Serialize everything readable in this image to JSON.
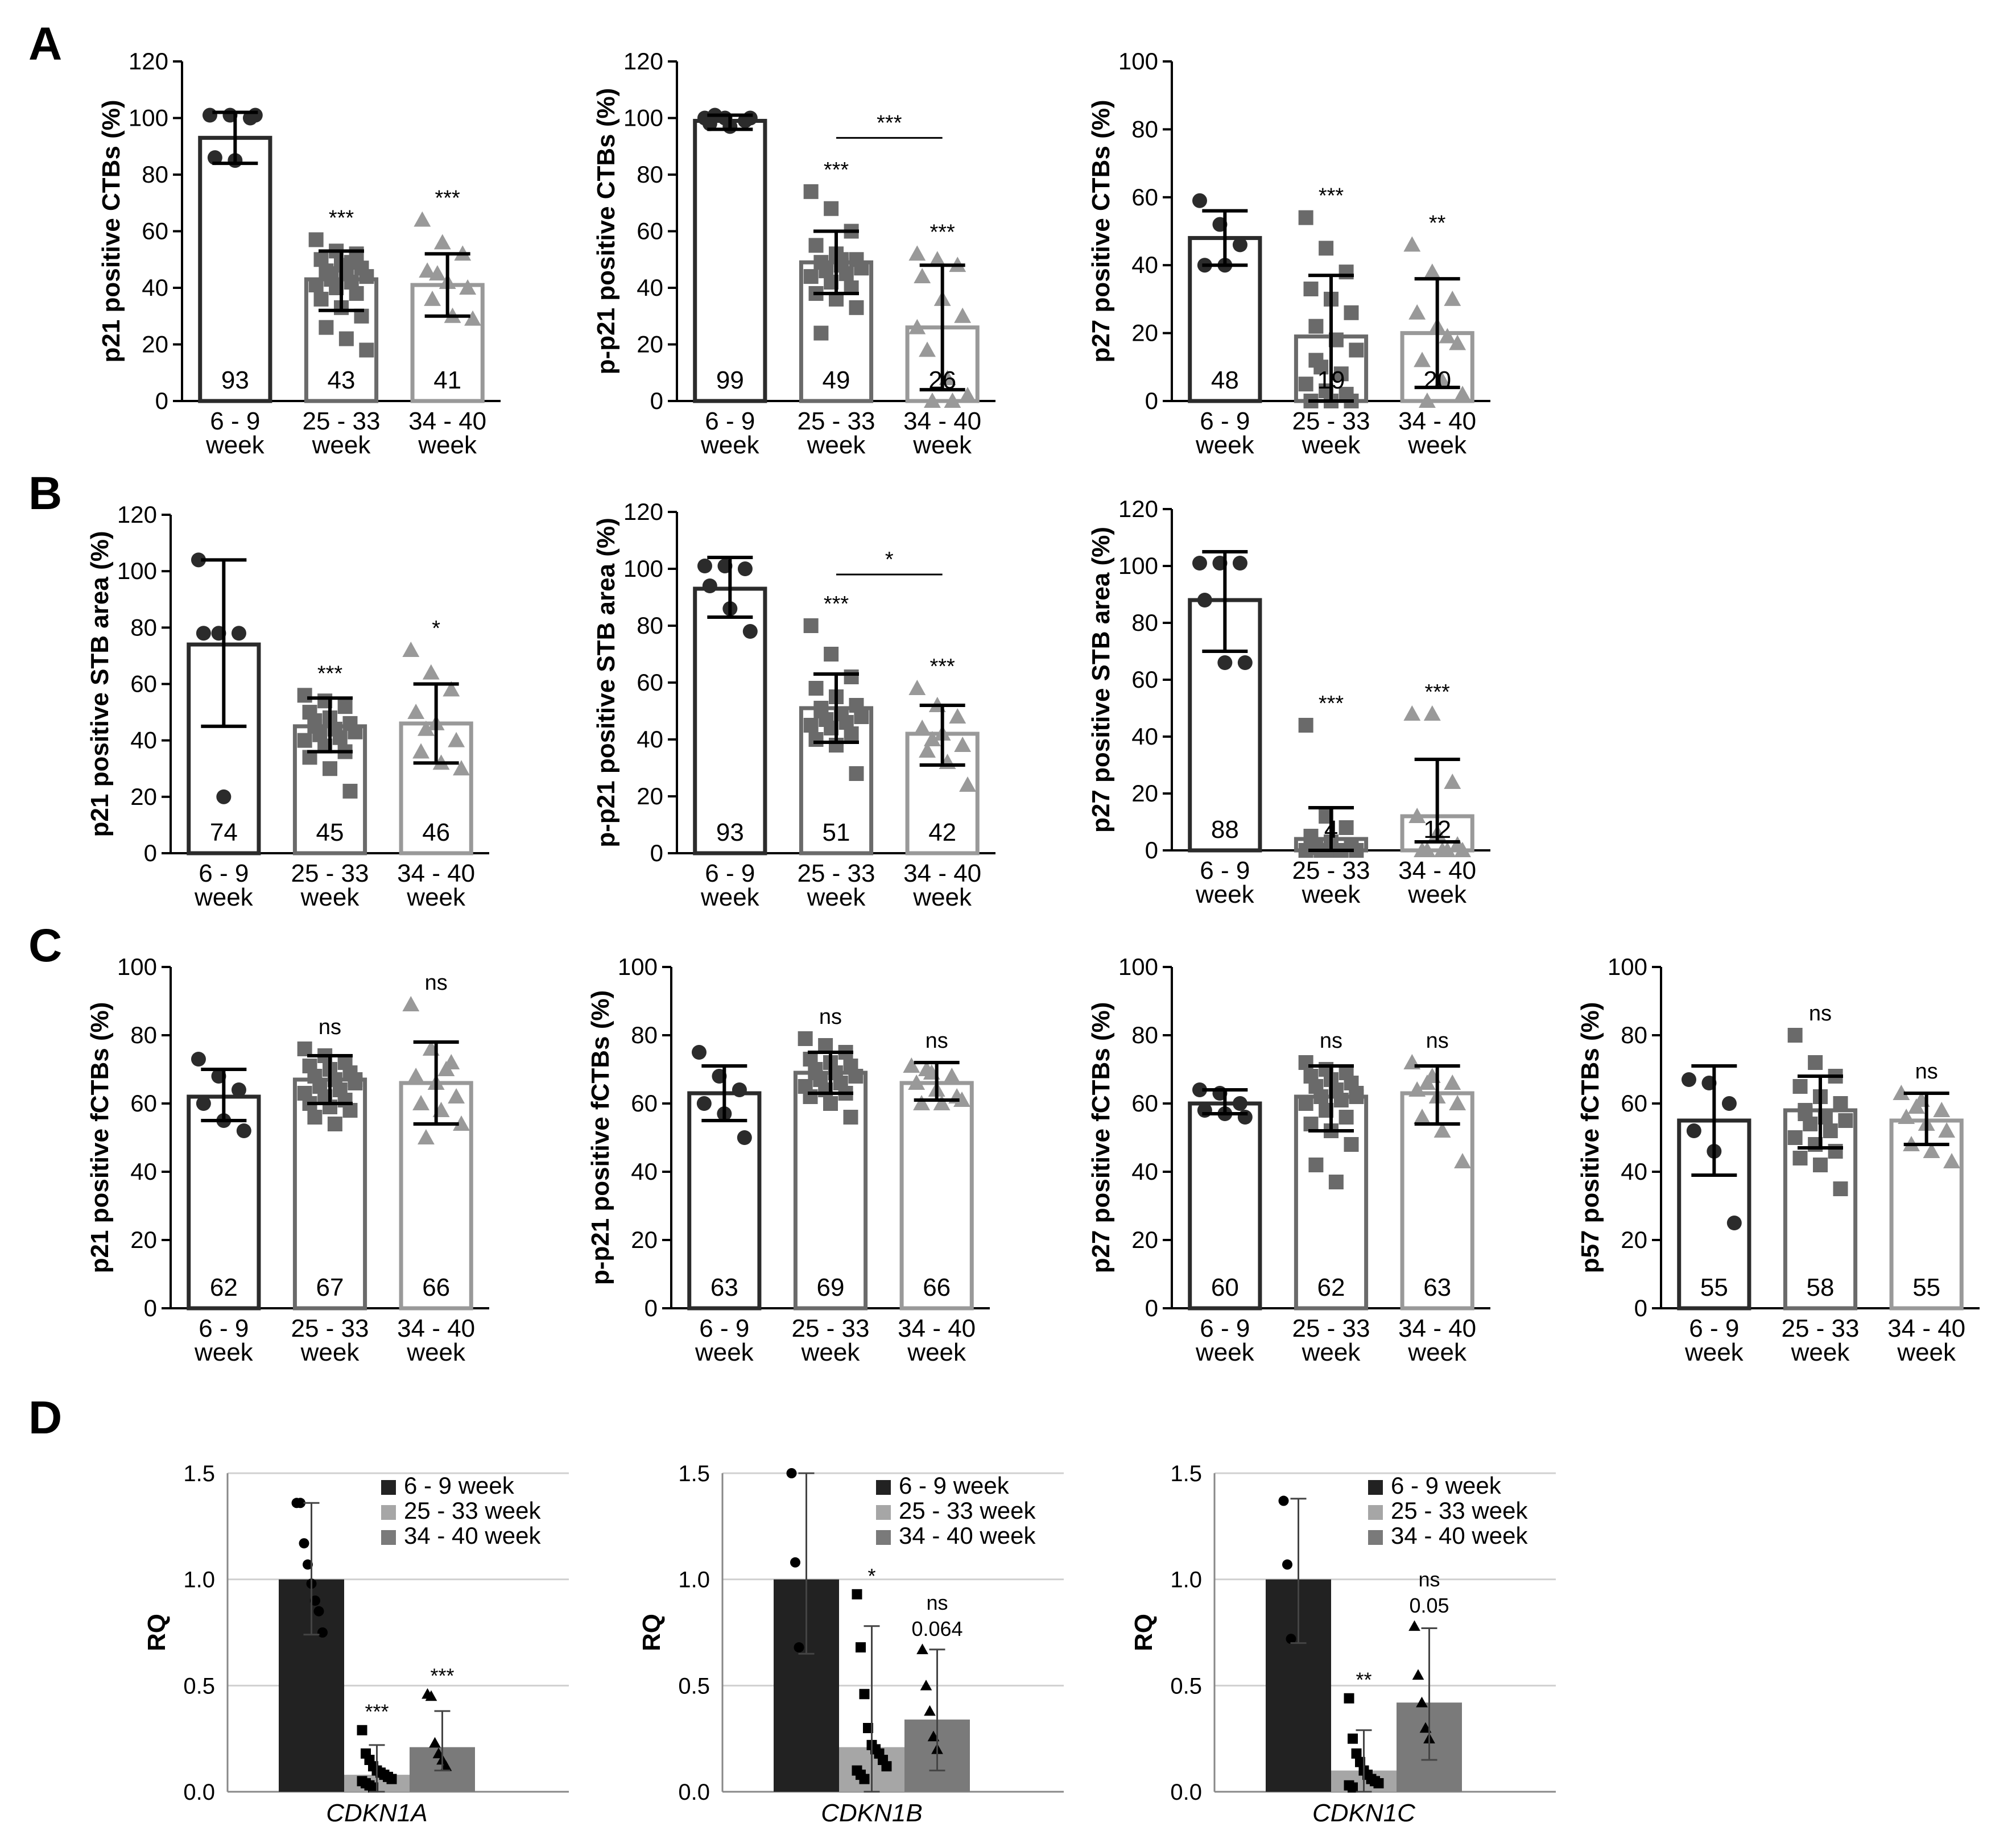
{
  "panel_letters": [
    "A",
    "B",
    "C",
    "D"
  ],
  "colors": {
    "dark": "#2b2b2b",
    "mid": "#6a6a6a",
    "light": "#999999",
    "rq_dark": "#222222",
    "rq_light": "#a6a6a6",
    "rq_mid": "#7a7a7a",
    "grid": "#d0d0d0"
  },
  "chart_data": [
    {
      "id": "A1",
      "panel": "A",
      "type": "bar",
      "ylabel": "p21 positive CTBs (%)",
      "ylim": [
        0,
        120
      ],
      "yticks": [
        0,
        20,
        40,
        60,
        80,
        100,
        120
      ],
      "categories": [
        [
          "6 - 9",
          "week"
        ],
        [
          "25 - 33",
          "week"
        ],
        [
          "34 - 40",
          "week"
        ]
      ],
      "values": [
        93,
        43,
        41
      ],
      "value_labels": [
        "93",
        "43",
        "41"
      ],
      "errors": [
        [
          84,
          102
        ],
        [
          32,
          53
        ],
        [
          30,
          52
        ]
      ],
      "significance": [
        "",
        "***",
        "***"
      ],
      "points": [
        [
          101,
          101,
          100,
          86,
          85,
          101
        ],
        [
          57,
          53,
          52,
          50,
          48,
          47,
          46,
          45,
          44,
          43,
          42,
          41,
          40,
          38,
          36,
          33,
          30,
          26,
          22,
          18,
          45,
          49
        ],
        [
          64,
          56,
          52,
          46,
          42,
          40,
          36,
          30,
          29,
          45
        ]
      ]
    },
    {
      "id": "A2",
      "panel": "A",
      "type": "bar",
      "ylabel": "p-p21 positive CTBs (%)",
      "ylim": [
        0,
        120
      ],
      "yticks": [
        0,
        20,
        40,
        60,
        80,
        100,
        120
      ],
      "categories": [
        [
          "6 - 9",
          "week"
        ],
        [
          "25 - 33",
          "week"
        ],
        [
          "34 - 40",
          "week"
        ]
      ],
      "values": [
        99,
        49,
        26
      ],
      "value_labels": [
        "99",
        "49",
        "26"
      ],
      "errors": [
        [
          96,
          101
        ],
        [
          38,
          60
        ],
        [
          4,
          48
        ]
      ],
      "significance": [
        "",
        "***",
        "***"
      ],
      "bracket": {
        "from": 1,
        "to": 2,
        "label": "***",
        "y": 93
      },
      "points": [
        [
          100,
          100,
          99,
          98,
          97,
          100,
          101
        ],
        [
          74,
          68,
          60,
          55,
          52,
          50,
          49,
          48,
          47,
          46,
          45,
          44,
          42,
          40,
          38,
          36,
          33,
          24,
          50,
          47
        ],
        [
          52,
          50,
          48,
          44,
          36,
          30,
          18,
          8,
          2,
          0,
          0,
          26
        ]
      ]
    },
    {
      "id": "A3",
      "panel": "A",
      "type": "bar",
      "ylabel": "p27 positive CTBs (%)",
      "ylim": [
        0,
        100
      ],
      "yticks": [
        0,
        20,
        40,
        60,
        80,
        100
      ],
      "categories": [
        [
          "6 - 9",
          "week"
        ],
        [
          "25 - 33",
          "week"
        ],
        [
          "34 - 40",
          "week"
        ]
      ],
      "values": [
        48,
        19,
        20
      ],
      "value_labels": [
        "48",
        "19",
        "20"
      ],
      "errors": [
        [
          40,
          56
        ],
        [
          0,
          37
        ],
        [
          4,
          36
        ]
      ],
      "significance": [
        "",
        "***",
        "**"
      ],
      "points": [
        [
          59,
          52,
          46,
          40,
          40
        ],
        [
          54,
          45,
          38,
          33,
          30,
          26,
          22,
          18,
          15,
          10,
          8,
          5,
          3,
          2,
          0,
          0,
          0,
          12
        ],
        [
          46,
          38,
          30,
          26,
          22,
          17,
          12,
          6,
          2,
          0,
          19
        ]
      ]
    },
    {
      "id": "B1",
      "panel": "B",
      "type": "bar",
      "ylabel": "p21 positive STB area (%)",
      "ylim": [
        0,
        120
      ],
      "yticks": [
        0,
        20,
        40,
        60,
        80,
        100,
        120
      ],
      "categories": [
        [
          "6 - 9",
          "week"
        ],
        [
          "25 - 33",
          "week"
        ],
        [
          "34 - 40",
          "week"
        ]
      ],
      "values": [
        74,
        45,
        46
      ],
      "value_labels": [
        "74",
        "45",
        "46"
      ],
      "errors": [
        [
          45,
          104
        ],
        [
          36,
          55
        ],
        [
          32,
          60
        ]
      ],
      "significance": [
        "",
        "***",
        "*"
      ],
      "points": [
        [
          104,
          78,
          78,
          78,
          20
        ],
        [
          56,
          54,
          52,
          50,
          48,
          46,
          45,
          44,
          43,
          42,
          41,
          40,
          38,
          36,
          34,
          30,
          22,
          47
        ],
        [
          72,
          64,
          58,
          50,
          46,
          40,
          36,
          32,
          30,
          44
        ]
      ]
    },
    {
      "id": "B2",
      "panel": "B",
      "type": "bar",
      "ylabel": "p-p21 positive STB area (%)",
      "ylim": [
        0,
        120
      ],
      "yticks": [
        0,
        20,
        40,
        60,
        80,
        100,
        120
      ],
      "categories": [
        [
          "6 - 9",
          "week"
        ],
        [
          "25 - 33",
          "week"
        ],
        [
          "34 - 40",
          "week"
        ]
      ],
      "values": [
        93,
        51,
        42
      ],
      "value_labels": [
        "93",
        "51",
        "42"
      ],
      "errors": [
        [
          83,
          104
        ],
        [
          39,
          63
        ],
        [
          31,
          52
        ]
      ],
      "significance": [
        "",
        "***",
        "***"
      ],
      "bracket": {
        "from": 1,
        "to": 2,
        "label": "*",
        "y": 98
      },
      "points": [
        [
          101,
          101,
          100,
          94,
          86,
          78
        ],
        [
          80,
          70,
          62,
          58,
          55,
          52,
          50,
          49,
          48,
          47,
          46,
          45,
          44,
          42,
          40,
          38,
          28,
          51
        ],
        [
          58,
          52,
          48,
          44,
          42,
          38,
          36,
          32,
          24,
          40
        ]
      ]
    },
    {
      "id": "B3",
      "panel": "B",
      "type": "bar",
      "ylabel": "p27 positive STB area (%)",
      "ylim": [
        0,
        120
      ],
      "yticks": [
        0,
        20,
        40,
        60,
        80,
        100,
        120
      ],
      "categories": [
        [
          "6 - 9",
          "week"
        ],
        [
          "25 - 33",
          "week"
        ],
        [
          "34 - 40",
          "week"
        ]
      ],
      "values": [
        88,
        4,
        12
      ],
      "value_labels": [
        "88",
        "4",
        "12"
      ],
      "errors": [
        [
          70,
          105
        ],
        [
          0,
          15
        ],
        [
          3,
          32
        ]
      ],
      "significance": [
        "",
        "***",
        "***"
      ],
      "points": [
        [
          101,
          101,
          101,
          88,
          66,
          66
        ],
        [
          44,
          12,
          8,
          5,
          3,
          2,
          1,
          0,
          0,
          0,
          0,
          0,
          0
        ],
        [
          48,
          48,
          24,
          12,
          6,
          2,
          0,
          0,
          0,
          0,
          0
        ]
      ]
    },
    {
      "id": "C1",
      "panel": "C",
      "type": "bar",
      "ylabel": "p21 positive fCTBs (%)",
      "ylim": [
        0,
        100
      ],
      "yticks": [
        0,
        20,
        40,
        60,
        80,
        100
      ],
      "categories": [
        [
          "6 - 9",
          "week"
        ],
        [
          "25 - 33",
          "week"
        ],
        [
          "34 - 40",
          "week"
        ]
      ],
      "values": [
        62,
        67,
        66
      ],
      "value_labels": [
        "62",
        "67",
        "66"
      ],
      "errors": [
        [
          55,
          70
        ],
        [
          60,
          74
        ],
        [
          54,
          78
        ]
      ],
      "significance": [
        "",
        "ns",
        "ns"
      ],
      "points": [
        [
          73,
          68,
          64,
          60,
          55,
          52
        ],
        [
          76,
          74,
          72,
          71,
          70,
          69,
          68,
          67,
          66,
          65,
          64,
          63,
          62,
          61,
          60,
          59,
          58,
          56,
          54,
          67
        ],
        [
          89,
          76,
          72,
          68,
          66,
          62,
          60,
          58,
          54,
          50,
          70
        ]
      ]
    },
    {
      "id": "C2",
      "panel": "C",
      "type": "bar",
      "ylabel": "p-p21 positive fCTBs (%)",
      "ylim": [
        0,
        100
      ],
      "yticks": [
        0,
        20,
        40,
        60,
        80,
        100
      ],
      "categories": [
        [
          "6 - 9",
          "week"
        ],
        [
          "25 - 33",
          "week"
        ],
        [
          "34 - 40",
          "week"
        ]
      ],
      "values": [
        63,
        69,
        66
      ],
      "value_labels": [
        "63",
        "69",
        "66"
      ],
      "errors": [
        [
          55,
          71
        ],
        [
          63,
          75
        ],
        [
          61,
          72
        ]
      ],
      "significance": [
        "",
        "ns",
        "ns"
      ],
      "points": [
        [
          75,
          68,
          64,
          60,
          57,
          50
        ],
        [
          79,
          77,
          75,
          73,
          72,
          71,
          70,
          69,
          68,
          67,
          66,
          65,
          64,
          63,
          62,
          60,
          56,
          69
        ],
        [
          71,
          69,
          68,
          66,
          64,
          62,
          60,
          60,
          61,
          70
        ]
      ]
    },
    {
      "id": "C3",
      "panel": "C",
      "type": "bar",
      "ylabel": "p27 positive fCTBs (%)",
      "ylim": [
        0,
        100
      ],
      "yticks": [
        0,
        20,
        40,
        60,
        80,
        100
      ],
      "categories": [
        [
          "6 - 9",
          "week"
        ],
        [
          "25 - 33",
          "week"
        ],
        [
          "34 - 40",
          "week"
        ]
      ],
      "values": [
        60,
        62,
        63
      ],
      "value_labels": [
        "60",
        "62",
        "63"
      ],
      "errors": [
        [
          57,
          64
        ],
        [
          52,
          71
        ],
        [
          54,
          71
        ]
      ],
      "significance": [
        "",
        "ns",
        "ns"
      ],
      "points": [
        [
          64,
          63,
          60,
          58,
          57,
          56
        ],
        [
          72,
          70,
          69,
          68,
          67,
          66,
          65,
          64,
          63,
          62,
          61,
          60,
          58,
          56,
          54,
          52,
          48,
          42,
          37,
          62
        ],
        [
          72,
          68,
          66,
          64,
          62,
          60,
          56,
          52,
          43,
          66
        ]
      ]
    },
    {
      "id": "C4",
      "panel": "C",
      "type": "bar",
      "ylabel": "p57 positive fCTBs (%)",
      "ylim": [
        0,
        100
      ],
      "yticks": [
        0,
        20,
        40,
        60,
        80,
        100
      ],
      "categories": [
        [
          "6 - 9",
          "week"
        ],
        [
          "25 - 33",
          "week"
        ],
        [
          "34 - 40",
          "week"
        ]
      ],
      "values": [
        55,
        58,
        55
      ],
      "value_labels": [
        "55",
        "58",
        "55"
      ],
      "errors": [
        [
          39,
          71
        ],
        [
          47,
          68
        ],
        [
          48,
          63
        ]
      ],
      "significance": [
        "",
        "ns",
        "ns"
      ],
      "points": [
        [
          67,
          66,
          60,
          52,
          46,
          25
        ],
        [
          80,
          72,
          68,
          65,
          62,
          60,
          58,
          56,
          55,
          54,
          52,
          50,
          48,
          46,
          44,
          42,
          35,
          57
        ],
        [
          63,
          61,
          58,
          56,
          54,
          52,
          48,
          46,
          43,
          59
        ]
      ]
    },
    {
      "id": "D1",
      "panel": "D",
      "type": "bar",
      "ylabel": "RQ",
      "xlabel": "CDKN1A",
      "ylim": [
        0,
        1.5
      ],
      "yticks": [
        "0.0",
        "0.5",
        "1.0",
        "1.5"
      ],
      "grid": true,
      "legend_position": "top-right",
      "series": [
        {
          "name": "6 - 9 week",
          "value": 1.0,
          "error": [
            0.74,
            1.36
          ],
          "marker": "circle",
          "points": [
            1.36,
            1.36,
            1.17,
            1.07,
            0.98,
            0.9,
            0.85,
            0.75
          ]
        },
        {
          "name": "25 - 33 week",
          "value": 0.08,
          "error": [
            0.0,
            0.22
          ],
          "marker": "square",
          "points": [
            0.29,
            0.18,
            0.15,
            0.12,
            0.1,
            0.09,
            0.08,
            0.07,
            0.06,
            0.05,
            0.04,
            0.03,
            0.02
          ],
          "significance": "***"
        },
        {
          "name": "34 - 40 week",
          "value": 0.21,
          "error": [
            0.1,
            0.38
          ],
          "marker": "triangle",
          "points": [
            0.46,
            0.45,
            0.23,
            0.18,
            0.15,
            0.12
          ],
          "significance": "***"
        }
      ]
    },
    {
      "id": "D2",
      "panel": "D",
      "type": "bar",
      "ylabel": "RQ",
      "xlabel": "CDKN1B",
      "ylim": [
        0,
        1.5
      ],
      "yticks": [
        "0.0",
        "0.5",
        "1.0",
        "1.5"
      ],
      "grid": true,
      "legend_position": "top-right",
      "series": [
        {
          "name": "6 - 9 week",
          "value": 1.0,
          "error": [
            0.65,
            1.5
          ],
          "marker": "circle",
          "points": [
            1.5,
            1.08,
            0.68
          ]
        },
        {
          "name": "25 - 33 week",
          "value": 0.21,
          "error": [
            0.0,
            0.78
          ],
          "marker": "square",
          "points": [
            0.93,
            0.68,
            0.46,
            0.3,
            0.22,
            0.2,
            0.18,
            0.15,
            0.12,
            0.1,
            0.08,
            0.06
          ],
          "significance": "*"
        },
        {
          "name": "34 - 40 week",
          "value": 0.34,
          "error": [
            0.1,
            0.67
          ],
          "marker": "triangle",
          "points": [
            0.67,
            0.5,
            0.38,
            0.26,
            0.2
          ],
          "significance": "ns",
          "p_value": "0.064"
        }
      ]
    },
    {
      "id": "D3",
      "panel": "D",
      "type": "bar",
      "ylabel": "RQ",
      "xlabel": "CDKN1C",
      "ylim": [
        0,
        1.5
      ],
      "yticks": [
        "0.0",
        "0.5",
        "1.0",
        "1.5"
      ],
      "grid": true,
      "legend_position": "top-right",
      "series": [
        {
          "name": "6 - 9 week",
          "value": 1.0,
          "error": [
            0.7,
            1.38
          ],
          "marker": "circle",
          "points": [
            1.37,
            1.07,
            0.72
          ]
        },
        {
          "name": "25 - 33 week",
          "value": 0.1,
          "error": [
            0.0,
            0.29
          ],
          "marker": "square",
          "points": [
            0.44,
            0.25,
            0.18,
            0.14,
            0.1,
            0.08,
            0.06,
            0.05,
            0.04,
            0.03,
            0.02
          ],
          "significance": "**"
        },
        {
          "name": "34 - 40 week",
          "value": 0.42,
          "error": [
            0.15,
            0.77
          ],
          "marker": "triangle",
          "points": [
            0.78,
            0.55,
            0.42,
            0.3,
            0.25
          ],
          "significance": "ns",
          "p_value": "0.05"
        }
      ]
    }
  ]
}
